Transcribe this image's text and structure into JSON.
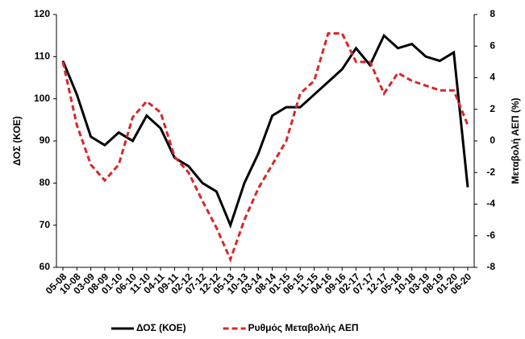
{
  "chart_data": {
    "type": "line",
    "categories": [
      "05-08",
      "10-08",
      "03-09",
      "08-09",
      "01-10",
      "06-10",
      "11-10",
      "04-11",
      "09-11",
      "02-12",
      "07-12",
      "12-12",
      "05-13",
      "10-13",
      "03-14",
      "08-14",
      "01-15",
      "06-15",
      "11-15",
      "04-16",
      "09-16",
      "02-17",
      "07-17",
      "12-17",
      "05-18",
      "10-18",
      "03-19",
      "08-19",
      "01-20",
      "06-20"
    ],
    "y_label": "ΔΟΣ (ΚΟΕ)",
    "y2_label": "Μεταβολή ΑΕΠ (%)",
    "ylim": [
      60,
      120
    ],
    "yticks": [
      60,
      70,
      80,
      90,
      100,
      110,
      120
    ],
    "y2lim": [
      -8,
      8
    ],
    "y2ticks": [
      -8,
      -6,
      -4,
      -2,
      0,
      2,
      4,
      6,
      8
    ],
    "legend": "bottom",
    "series": [
      {
        "name": "ΔΟΣ (ΚΟΕ)",
        "color": "#000000",
        "dash": false,
        "values": [
          109,
          101,
          91,
          89,
          92,
          90,
          96,
          93,
          86,
          84,
          80,
          78,
          70,
          80,
          87,
          96,
          98,
          98,
          101,
          104,
          107,
          112,
          108,
          115,
          112,
          113,
          110,
          109,
          111,
          79
        ]
      },
      {
        "name": "Ρυθμός Μεταβολής ΑΕΠ",
        "color": "#d9262a",
        "dash": true,
        "axis": "y2",
        "values": [
          5,
          1,
          -1.5,
          -2.5,
          -1.5,
          1.5,
          2.5,
          1.8,
          -1,
          -2,
          -3.8,
          -5.5,
          -7.5,
          -5,
          -3,
          -1.5,
          0,
          3,
          3.8,
          6.8,
          6.8,
          5,
          5,
          3,
          4.3,
          3.8,
          3.5,
          3.2,
          3.2,
          1
        ]
      }
    ]
  }
}
